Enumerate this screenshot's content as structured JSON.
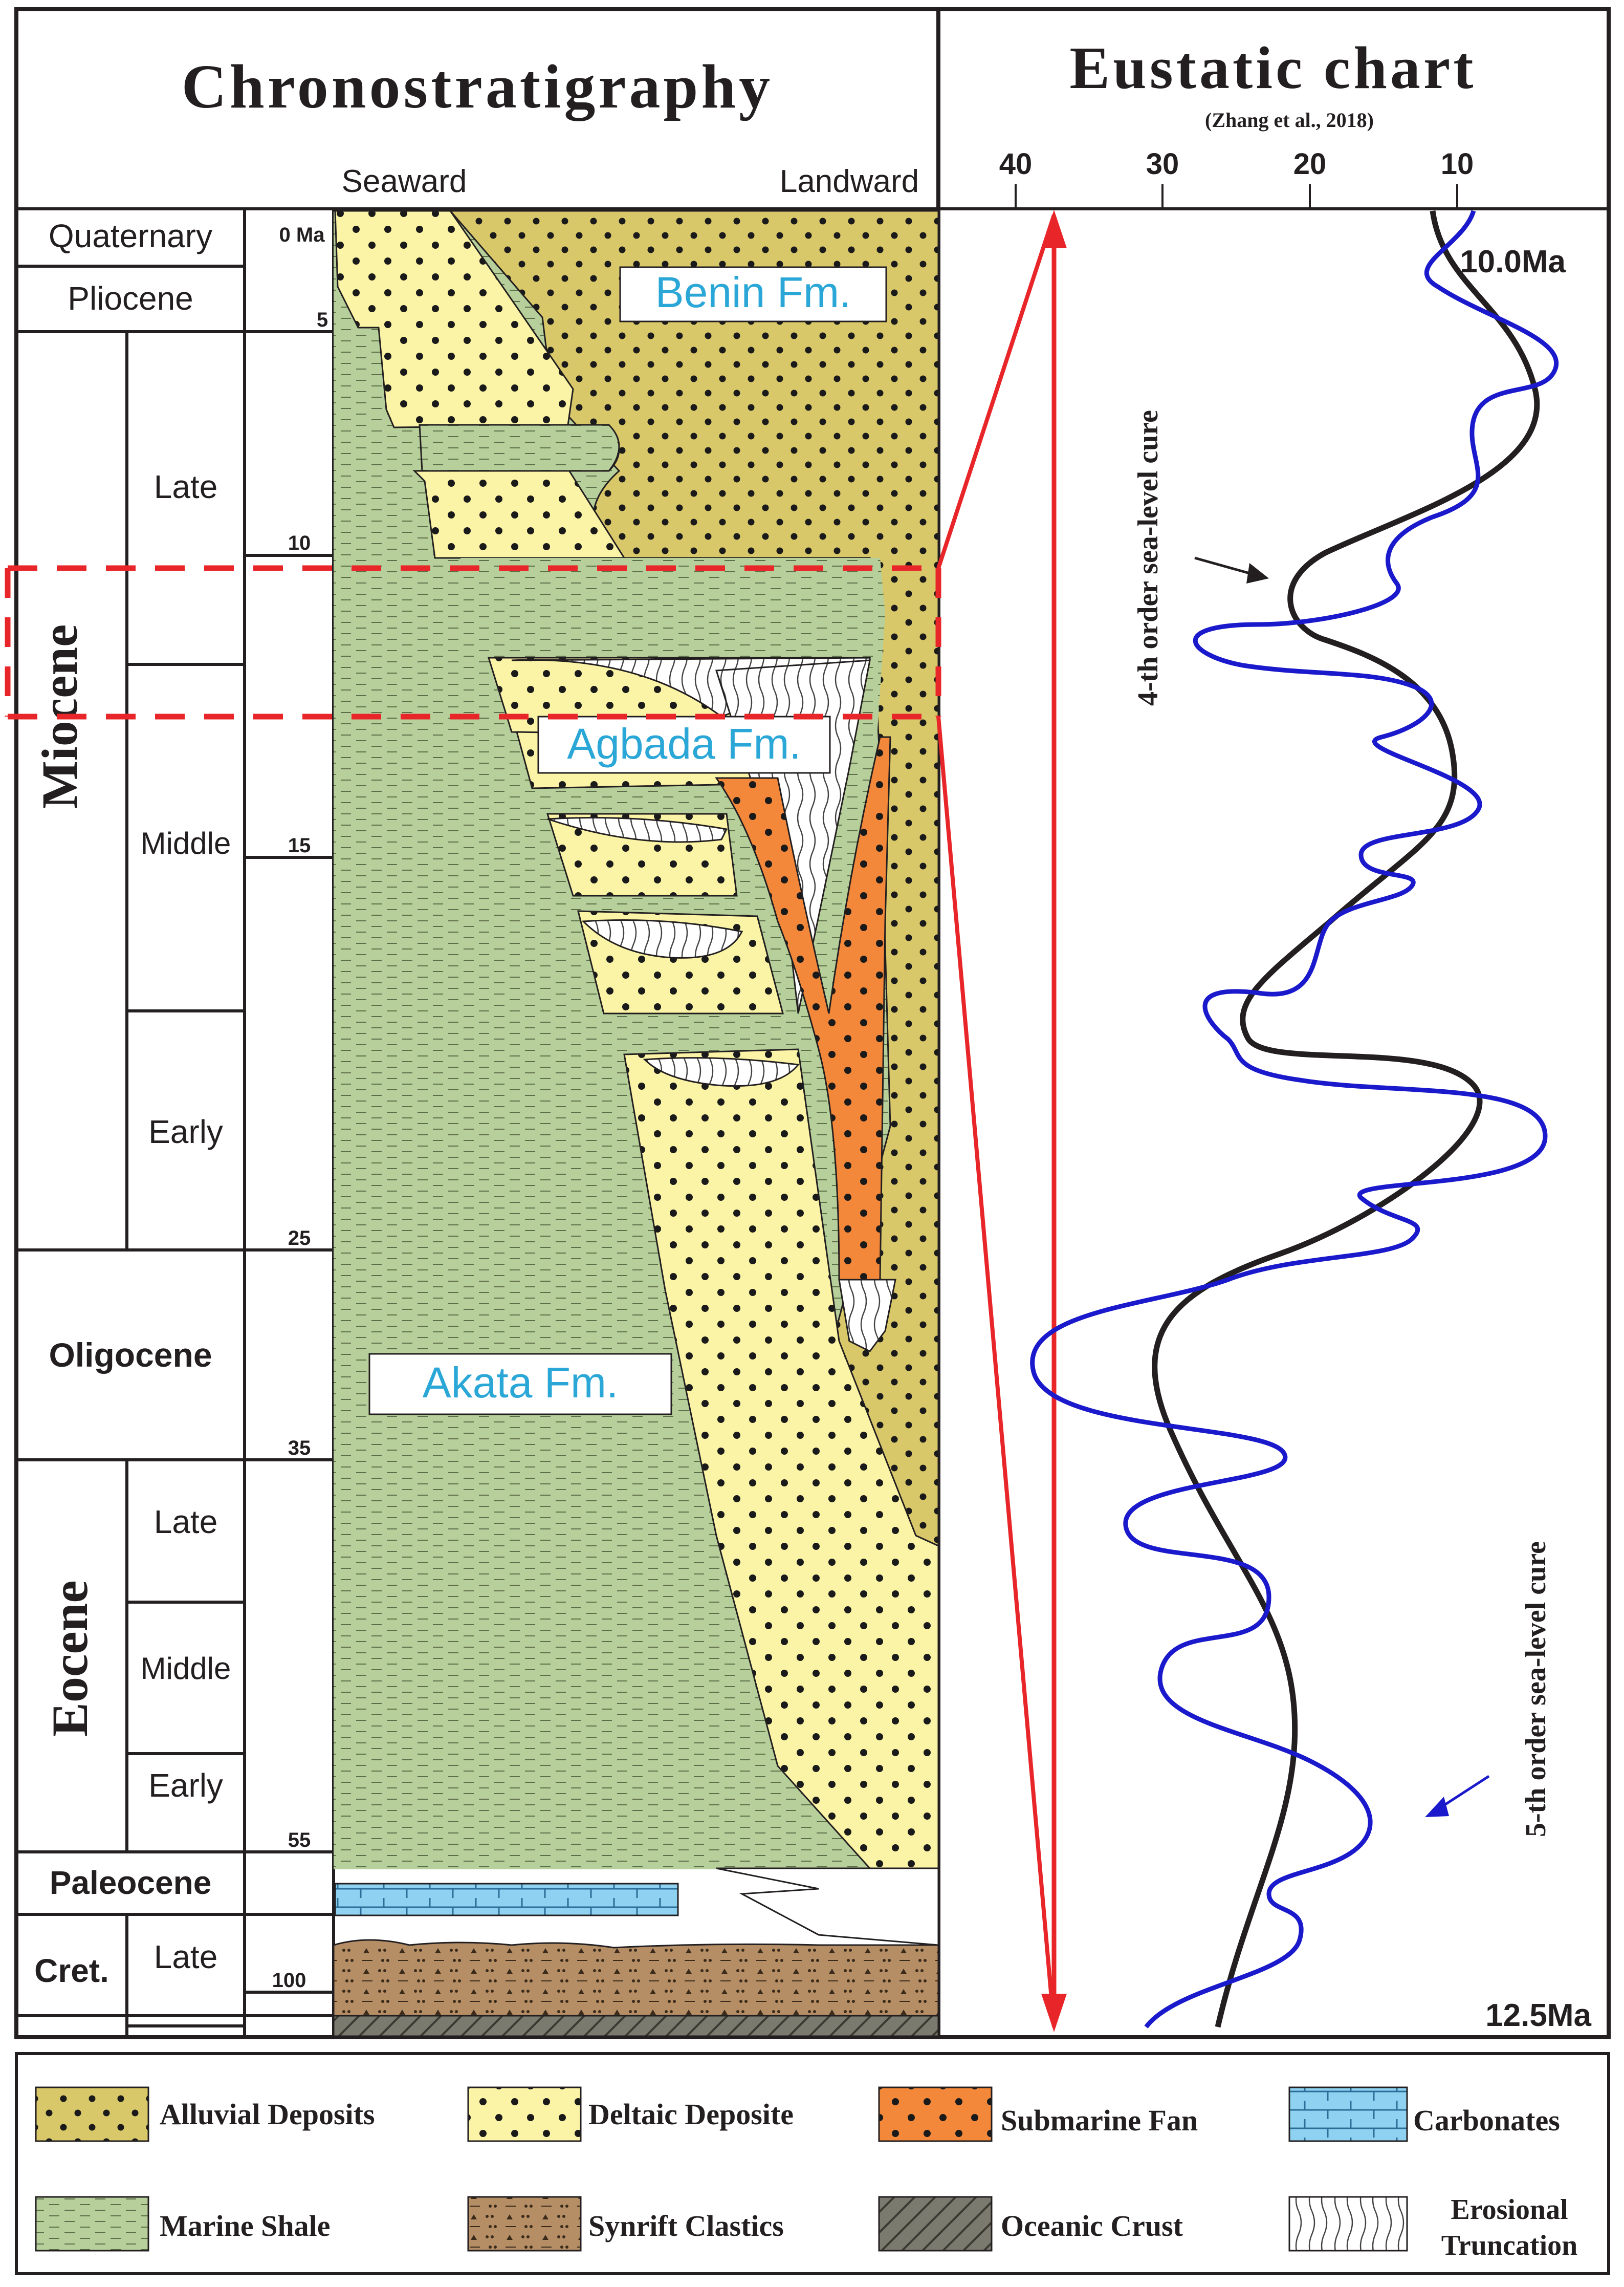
{
  "header": {
    "chrono_title": "Chronostratigraphy",
    "eustatic_title": "Eustatic chart",
    "eustatic_citation": "(Zhang et al., 2018)",
    "seaward_label": "Seaward",
    "landward_label": "Landward"
  },
  "eustatic_axis": {
    "ticks": [
      "40",
      "30",
      "20",
      "10"
    ],
    "top_label": "10.0Ma",
    "bottom_label": "12.5Ma",
    "curve_4th_label": "4-th order sea-level cure",
    "curve_5th_label": "5-th order sea-level cure"
  },
  "periods": {
    "quaternary": "Quaternary",
    "pliocene": "Pliocene",
    "miocene": "Miocene",
    "oligocene": "Oligocene",
    "eocene": "Eocene",
    "paleocene": "Paleocene",
    "cretaceous": "Cret."
  },
  "epochs": {
    "miocene_late": "Late",
    "miocene_middle": "Middle",
    "miocene_early": "Early",
    "eocene_late": "Late",
    "eocene_middle": "Middle",
    "eocene_early": "Early",
    "cret_late": "Late"
  },
  "ages": [
    "0 Ma",
    "5",
    "10",
    "15",
    "25",
    "35",
    "55",
    "100"
  ],
  "formations": {
    "benin": "Benin Fm.",
    "agbada": "Agbada Fm.",
    "akata": "Akata Fm."
  },
  "legend": {
    "alluvial": "Alluvial Deposits",
    "deltaic": "Deltaic Deposite",
    "submarine_fan": "Submarine Fan",
    "carbonates": "Carbonates",
    "marine_shale": "Marine Shale",
    "synrift": "Synrift Clastics",
    "oceanic_crust": "Oceanic Crust",
    "erosional_1": "Erosional",
    "erosional_2": "Truncation"
  },
  "colors": {
    "alluvial": "#d9c86a",
    "deltaic": "#fbf4a6",
    "submarine_fan": "#f4883a",
    "carbonates": "#8fd1f0",
    "marine_shale": "#b7cf9a",
    "synrift": "#b58e66",
    "oceanic_crust": "#7a7a6e",
    "curve_4th": "#231f20",
    "curve_5th": "#1a1acc",
    "highlight": "#e8262a",
    "formation_text": "#2aa7d6"
  }
}
